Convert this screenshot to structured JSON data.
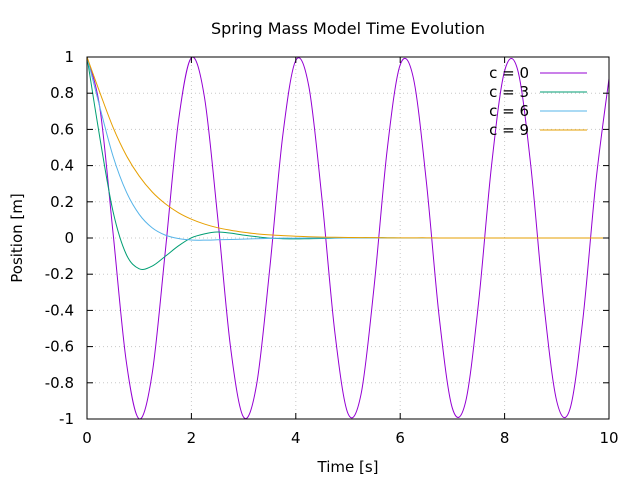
{
  "chart_data": {
    "type": "line",
    "title": "Spring Mass Model Time Evolution",
    "xlabel": "Time [s]",
    "ylabel": "Position [m]",
    "xlim": [
      0,
      10
    ],
    "ylim": [
      -1,
      1
    ],
    "grid": true,
    "legend_position": "top-right",
    "x_ticks": [
      "0",
      "2",
      "4",
      "6",
      "8",
      "10"
    ],
    "y_ticks": [
      "-1",
      "-0.8",
      "-0.6",
      "-0.4",
      "-0.2",
      "0",
      "0.2",
      "0.4",
      "0.6",
      "0.8",
      "1"
    ],
    "x_tick_values": [
      0,
      2,
      4,
      6,
      8,
      10
    ],
    "y_tick_values": [
      -1,
      -0.8,
      -0.6,
      -0.4,
      -0.2,
      0,
      0.2,
      0.4,
      0.6,
      0.8,
      1
    ],
    "x": [
      0,
      0.25,
      0.5,
      0.75,
      1,
      1.25,
      1.5,
      1.75,
      2,
      2.25,
      2.5,
      2.75,
      3,
      3.25,
      3.5,
      3.75,
      4,
      4.25,
      4.5,
      4.75,
      5,
      5.25,
      5.5,
      5.75,
      6,
      6.25,
      6.5,
      6.75,
      7,
      7.25,
      7.5,
      7.75,
      8,
      8.25,
      8.5,
      8.75,
      9,
      9.25,
      9.5,
      9.75,
      10
    ],
    "series": [
      {
        "name": "c = 0",
        "color": "#9400d3",
        "values": [
          1,
          0.712,
          0.025,
          -0.677,
          -0.999,
          -0.746,
          -0.074,
          0.641,
          0.996,
          0.778,
          0.124,
          -0.604,
          -0.99,
          -0.808,
          -0.172,
          0.565,
          0.981,
          0.837,
          0.22,
          -0.526,
          -0.97,
          -0.863,
          -0.268,
          0.486,
          0.957,
          0.887,
          0.314,
          -0.444,
          -0.941,
          -0.909,
          -0.36,
          0.401,
          0.923,
          0.929,
          0.404,
          -0.358,
          -0.903,
          -0.947,
          -0.448,
          0.314,
          0.881
        ]
      },
      {
        "name": "c = 3",
        "color": "#009e73",
        "values": [
          1,
          0.547,
          0.145,
          -0.089,
          -0.17,
          -0.155,
          -0.101,
          -0.044,
          0.001,
          0.023,
          0.033,
          0.027,
          0.016,
          0.007,
          -0.001,
          -0.004,
          -0.005,
          -0.004,
          -0.003,
          -0.001,
          0,
          0.001,
          0.001,
          0.001,
          0,
          0,
          0,
          0,
          0,
          0,
          0,
          0,
          0,
          0,
          0,
          0,
          0,
          0,
          0,
          0,
          0
        ]
      },
      {
        "name": "c = 6",
        "color": "#56b4e9",
        "values": [
          1,
          0.719,
          0.451,
          0.257,
          0.131,
          0.056,
          0.016,
          -0.003,
          -0.011,
          -0.012,
          -0.01,
          -0.008,
          -0.006,
          -0.004,
          -0.002,
          -0.001,
          -0.001,
          0,
          0,
          0,
          0,
          0,
          0,
          0,
          0,
          0,
          0,
          0,
          0,
          0,
          0,
          0,
          0,
          0,
          0,
          0,
          0,
          0,
          0,
          0,
          0
        ]
      },
      {
        "name": "c = 9",
        "color": "#e69f00",
        "values": [
          1,
          0.801,
          0.611,
          0.458,
          0.342,
          0.254,
          0.189,
          0.14,
          0.104,
          0.077,
          0.057,
          0.043,
          0.032,
          0.023,
          0.017,
          0.013,
          0.01,
          0.007,
          0.005,
          0.004,
          0.003,
          0.002,
          0.002,
          0.001,
          0.001,
          0.001,
          0.001,
          0,
          0,
          0,
          0,
          0,
          0,
          0,
          0,
          0,
          0,
          0,
          0,
          0,
          0
        ]
      }
    ]
  }
}
